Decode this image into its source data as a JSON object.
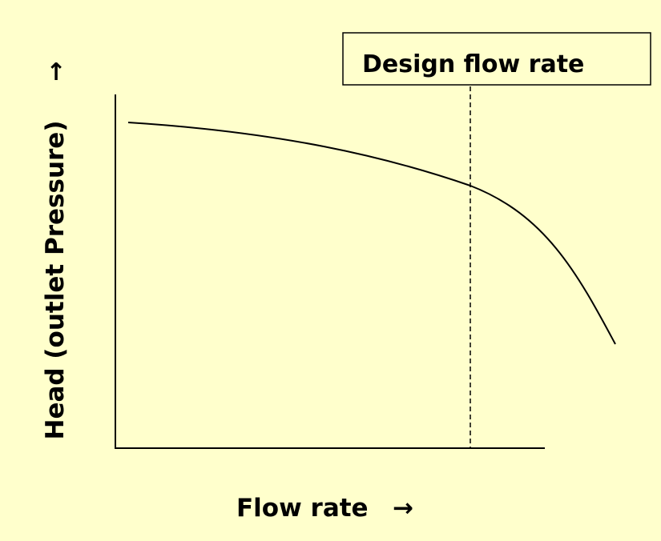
{
  "diagram": {
    "y_axis_label": "Head (outlet Pressure)",
    "y_axis_arrow": "↑",
    "x_axis_label": "Flow rate",
    "x_axis_arrow": "→",
    "design_label": "Design flow rate"
  }
}
